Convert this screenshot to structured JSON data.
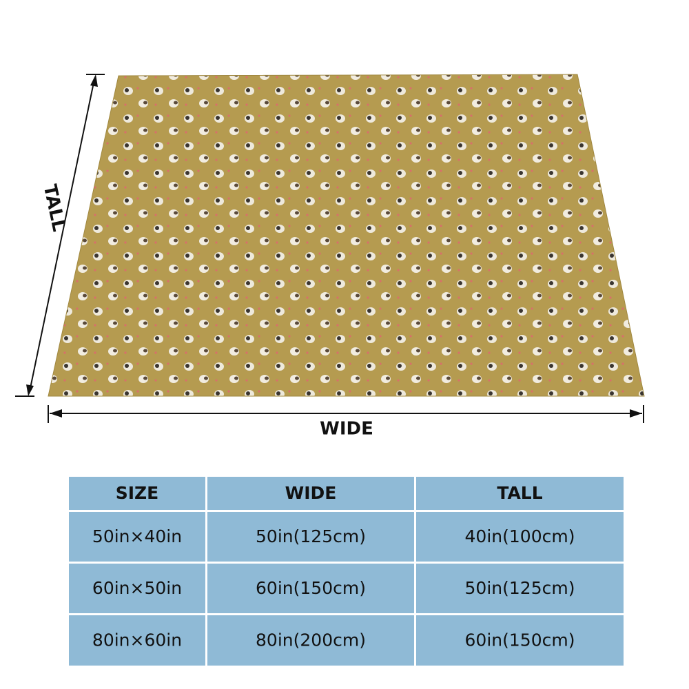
{
  "dimensions": {
    "tall_label": "TALL",
    "wide_label": "WIDE"
  },
  "table": {
    "header": [
      "SIZE",
      "WIDE",
      "TALL"
    ],
    "rows": [
      [
        "50in×40in",
        "50in(125cm)",
        "40in(100cm)"
      ],
      [
        "60in×50in",
        "60in(150cm)",
        "50in(125cm)"
      ],
      [
        "80in×60in",
        "80in(200cm)",
        "60in(150cm)"
      ]
    ]
  }
}
